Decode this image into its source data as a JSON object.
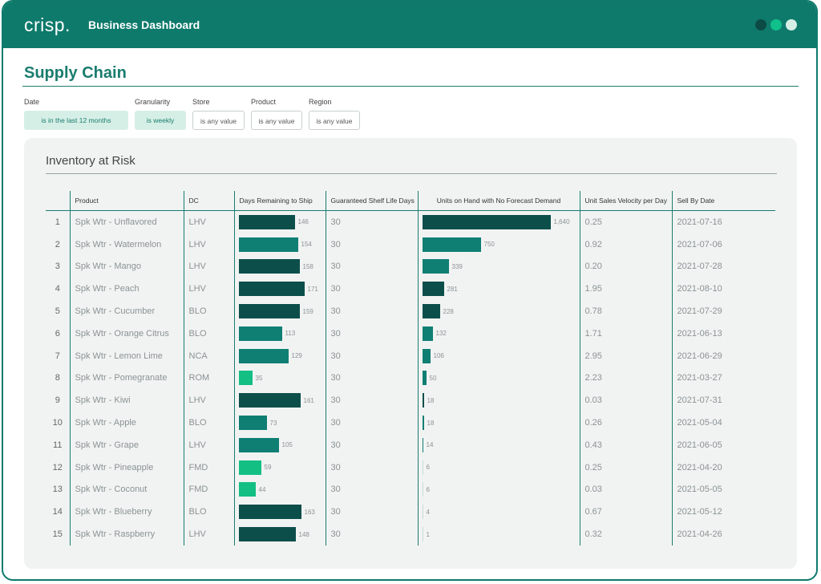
{
  "header": {
    "logo": "crisp.",
    "title": "Business Dashboard"
  },
  "window_dots": [
    {
      "name": "dot-dark-icon",
      "color": "#0c4a45"
    },
    {
      "name": "dot-green-icon",
      "color": "#10c08a"
    },
    {
      "name": "dot-light-icon",
      "color": "#d6efe6"
    }
  ],
  "page": {
    "title": "Supply Chain"
  },
  "filters": [
    {
      "label": "Date",
      "value": "is in the last 12 months",
      "active": true
    },
    {
      "label": "Granularity",
      "value": "is weekly",
      "active": true
    },
    {
      "label": "Store",
      "value": "is any value",
      "active": false
    },
    {
      "label": "Product",
      "value": "is any value",
      "active": false
    },
    {
      "label": "Region",
      "value": "is any value",
      "active": false
    }
  ],
  "panel": {
    "title": "Inventory at Risk"
  },
  "table": {
    "columns": [
      "",
      "Product",
      "DC",
      "Days Remaining to Ship",
      "Guaranteed Shelf Life Days",
      "Units on Hand with No Forecast Demand",
      "Unit Sales Velocity per Day",
      "Sell By Date"
    ],
    "days_max": 180,
    "units_max": 1640,
    "rows": [
      {
        "rank": "1",
        "product": "Spk Wtr - Unflavored",
        "dc": "LHV",
        "days": 146,
        "shelf": "30",
        "units": 1640,
        "units_label": "1,640",
        "velocity": "0.25",
        "sell_by": "2021-07-16"
      },
      {
        "rank": "2",
        "product": "Spk Wtr - Watermelon",
        "dc": "LHV",
        "days": 154,
        "shelf": "30",
        "units": 750,
        "units_label": "750",
        "velocity": "0.92",
        "sell_by": "2021-07-06"
      },
      {
        "rank": "3",
        "product": "Spk Wtr - Mango",
        "dc": "LHV",
        "days": 158,
        "shelf": "30",
        "units": 339,
        "units_label": "339",
        "velocity": "0.20",
        "sell_by": "2021-07-28"
      },
      {
        "rank": "4",
        "product": "Spk Wtr - Peach",
        "dc": "LHV",
        "days": 171,
        "shelf": "30",
        "units": 281,
        "units_label": "281",
        "velocity": "1.95",
        "sell_by": "2021-08-10"
      },
      {
        "rank": "5",
        "product": "Spk Wtr - Cucumber",
        "dc": "BLO",
        "days": 159,
        "shelf": "30",
        "units": 228,
        "units_label": "228",
        "velocity": "0.78",
        "sell_by": "2021-07-29"
      },
      {
        "rank": "6",
        "product": "Spk Wtr - Orange Citrus",
        "dc": "BLO",
        "days": 113,
        "shelf": "30",
        "units": 132,
        "units_label": "132",
        "velocity": "1.71",
        "sell_by": "2021-06-13"
      },
      {
        "rank": "7",
        "product": "Spk Wtr - Lemon Lime",
        "dc": "NCA",
        "days": 129,
        "shelf": "30",
        "units": 106,
        "units_label": "106",
        "velocity": "2.95",
        "sell_by": "2021-06-29"
      },
      {
        "rank": "8",
        "product": "Spk Wtr - Pomegranate",
        "dc": "ROM",
        "days": 35,
        "shelf": "30",
        "units": 50,
        "units_label": "50",
        "velocity": "2.23",
        "sell_by": "2021-03-27"
      },
      {
        "rank": "9",
        "product": "Spk Wtr - Kiwi",
        "dc": "LHV",
        "days": 161,
        "shelf": "30",
        "units": 18,
        "units_label": "18",
        "velocity": "0.03",
        "sell_by": "2021-07-31"
      },
      {
        "rank": "10",
        "product": "Spk Wtr - Apple",
        "dc": "BLO",
        "days": 73,
        "shelf": "30",
        "units": 18,
        "units_label": "18",
        "velocity": "0.26",
        "sell_by": "2021-05-04"
      },
      {
        "rank": "11",
        "product": "Spk Wtr - Grape",
        "dc": "LHV",
        "days": 105,
        "shelf": "30",
        "units": 14,
        "units_label": "14",
        "velocity": "0.43",
        "sell_by": "2021-06-05"
      },
      {
        "rank": "12",
        "product": "Spk Wtr - Pineapple",
        "dc": "FMD",
        "days": 59,
        "shelf": "30",
        "units": 6,
        "units_label": "6",
        "velocity": "0.25",
        "sell_by": "2021-04-20"
      },
      {
        "rank": "13",
        "product": "Spk Wtr - Coconut",
        "dc": "FMD",
        "days": 44,
        "shelf": "30",
        "units": 6,
        "units_label": "6",
        "velocity": "0.03",
        "sell_by": "2021-05-05"
      },
      {
        "rank": "14",
        "product": "Spk Wtr - Blueberry",
        "dc": "BLO",
        "days": 163,
        "shelf": "30",
        "units": 4,
        "units_label": "4",
        "velocity": "0.67",
        "sell_by": "2021-05-12"
      },
      {
        "rank": "15",
        "product": "Spk Wtr - Raspberry",
        "dc": "LHV",
        "days": 148,
        "shelf": "30",
        "units": 1,
        "units_label": "1",
        "velocity": "0.32",
        "sell_by": "2021-04-26"
      }
    ]
  },
  "colors": {
    "brand": "#0e7a6b",
    "bar_dark": "#0c4f4a",
    "bar_mid": "#0f7f73",
    "bar_light": "#14bf84",
    "units_light": "#c9ddd9"
  }
}
